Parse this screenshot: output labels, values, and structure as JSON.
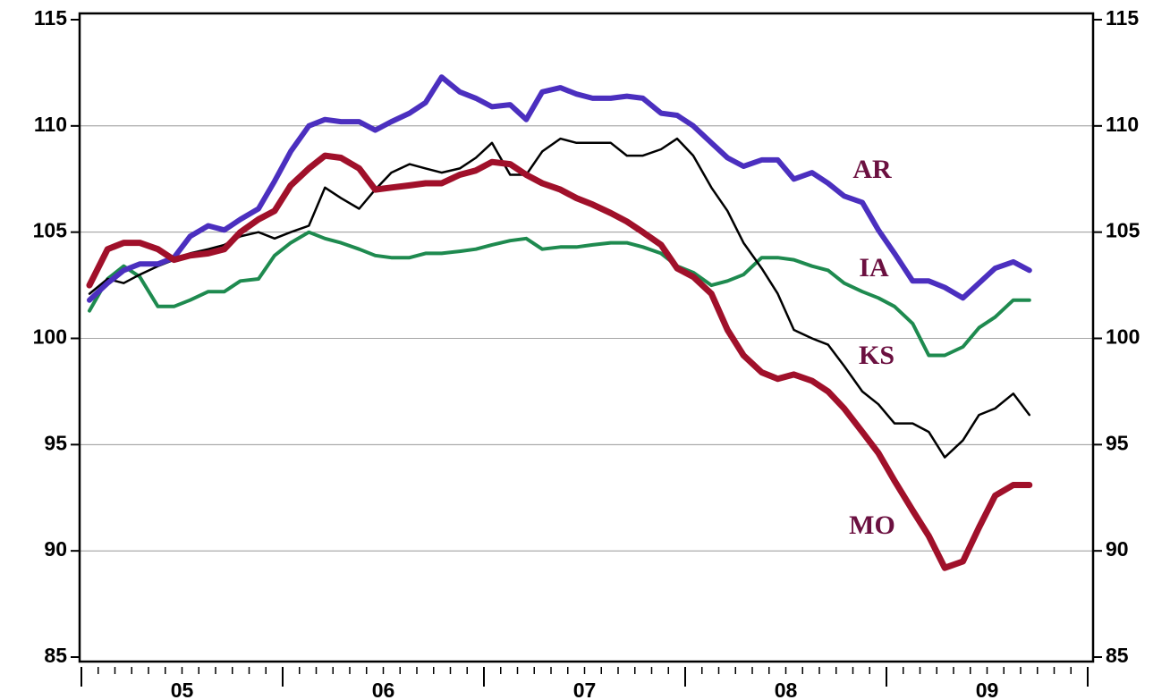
{
  "chart_data": {
    "type": "line",
    "xlim": [
      2005,
      2010
    ],
    "xticks_major": [
      2005,
      2006,
      2007,
      2008,
      2009,
      2010
    ],
    "xticks": [
      {
        "value": 2005.5,
        "label": "05"
      },
      {
        "value": 2006.5,
        "label": "06"
      },
      {
        "value": 2007.5,
        "label": "07"
      },
      {
        "value": 2008.5,
        "label": "08"
      },
      {
        "value": 2009.5,
        "label": "09"
      }
    ],
    "ylim": [
      85,
      115
    ],
    "yticks": [
      85,
      90,
      95,
      100,
      105,
      110,
      115
    ],
    "grid": true,
    "x": [
      2005.04,
      2005.13,
      2005.21,
      2005.29,
      2005.38,
      2005.46,
      2005.54,
      2005.63,
      2005.71,
      2005.79,
      2005.88,
      2005.96,
      2006.04,
      2006.13,
      2006.21,
      2006.29,
      2006.38,
      2006.46,
      2006.54,
      2006.63,
      2006.71,
      2006.79,
      2006.88,
      2006.96,
      2007.04,
      2007.13,
      2007.21,
      2007.29,
      2007.38,
      2007.46,
      2007.54,
      2007.63,
      2007.71,
      2007.79,
      2007.88,
      2007.96,
      2008.04,
      2008.13,
      2008.21,
      2008.29,
      2008.38,
      2008.46,
      2008.54,
      2008.63,
      2008.71,
      2008.79,
      2008.88,
      2008.96,
      2009.04,
      2009.13,
      2009.21,
      2009.29,
      2009.38,
      2009.46,
      2009.54,
      2009.63,
      2009.71
    ],
    "series": [
      {
        "name": "IA",
        "color": "#1e8a4f",
        "width": 4,
        "values": [
          101.3,
          102.8,
          103.4,
          102.9,
          101.5,
          101.5,
          101.8,
          102.2,
          102.2,
          102.7,
          102.8,
          103.9,
          104.5,
          105.0,
          104.7,
          104.5,
          104.2,
          103.9,
          103.8,
          103.8,
          104.0,
          104.0,
          104.1,
          104.2,
          104.4,
          104.6,
          104.7,
          104.2,
          104.3,
          104.3,
          104.4,
          104.5,
          104.5,
          104.3,
          104.0,
          103.4,
          103.1,
          102.5,
          102.7,
          103.0,
          103.8,
          103.8,
          103.7,
          103.4,
          103.2,
          102.6,
          102.2,
          101.9,
          101.5,
          100.7,
          99.2,
          99.2,
          99.6,
          100.5,
          101.0,
          101.8,
          101.8
        ]
      },
      {
        "name": "KS",
        "color": "#000000",
        "width": 2.5,
        "values": [
          102.1,
          102.8,
          102.6,
          103.0,
          103.4,
          103.7,
          104.0,
          104.2,
          104.4,
          104.8,
          105.0,
          104.7,
          105.0,
          105.3,
          107.1,
          106.6,
          106.1,
          107.0,
          107.8,
          108.2,
          108.0,
          107.8,
          108.0,
          108.5,
          109.2,
          107.7,
          107.7,
          108.8,
          109.4,
          109.2,
          109.2,
          109.2,
          108.6,
          108.6,
          108.9,
          109.4,
          108.6,
          107.1,
          106.0,
          104.5,
          103.3,
          102.1,
          100.4,
          100.0,
          99.7,
          98.7,
          97.5,
          96.9,
          96.0,
          96.0,
          95.6,
          94.4,
          95.2,
          96.4,
          96.7,
          97.4,
          96.4
        ]
      },
      {
        "name": "AR",
        "color": "#4b2fbf",
        "width": 6,
        "values": [
          101.8,
          102.6,
          103.2,
          103.5,
          103.5,
          103.8,
          104.8,
          105.3,
          105.1,
          105.6,
          106.1,
          107.4,
          108.8,
          110.0,
          110.3,
          110.2,
          110.2,
          109.8,
          110.2,
          110.6,
          111.1,
          112.3,
          111.6,
          111.3,
          110.9,
          111.0,
          110.3,
          111.6,
          111.8,
          111.5,
          111.3,
          111.3,
          111.4,
          111.3,
          110.6,
          110.5,
          110.0,
          109.2,
          108.5,
          108.1,
          108.4,
          108.4,
          107.5,
          107.8,
          107.3,
          106.7,
          106.4,
          105.1,
          104.0,
          102.7,
          102.7,
          102.4,
          101.9,
          102.6,
          103.3,
          103.6,
          103.2
        ]
      },
      {
        "name": "MO",
        "color": "#a0102a",
        "width": 7,
        "values": [
          102.5,
          104.2,
          104.5,
          104.5,
          104.2,
          103.7,
          103.9,
          104.0,
          104.2,
          105.0,
          105.6,
          106.0,
          107.2,
          108.0,
          108.6,
          108.5,
          108.0,
          107.0,
          107.1,
          107.2,
          107.3,
          107.3,
          107.7,
          107.9,
          108.3,
          108.2,
          107.7,
          107.3,
          107.0,
          106.6,
          106.3,
          105.9,
          105.5,
          105.0,
          104.4,
          103.3,
          102.9,
          102.1,
          100.4,
          99.2,
          98.4,
          98.1,
          98.3,
          98.0,
          97.5,
          96.7,
          95.6,
          94.6,
          93.3,
          91.9,
          90.7,
          89.2,
          89.5,
          91.1,
          92.6,
          93.1,
          93.1
        ]
      }
    ]
  }
}
